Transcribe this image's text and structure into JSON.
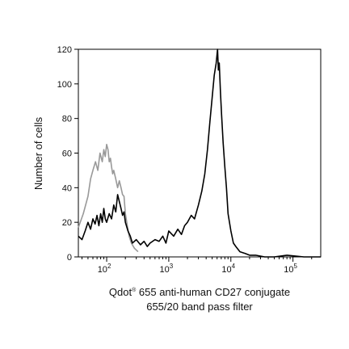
{
  "chart_data": {
    "type": "line",
    "title": "",
    "xlabel_line1_main": "Qdot",
    "xlabel_line1_sup": "®",
    "xlabel_line1_rest": " 655 anti-human CD27 conjugate",
    "xlabel_line2": "655/20 band pass filter",
    "ylabel": "Number of cells",
    "x_scale": "log",
    "xlim": [
      35,
      280000
    ],
    "ylim": [
      0,
      120
    ],
    "y_ticks": [
      0,
      20,
      40,
      60,
      80,
      100,
      120
    ],
    "x_ticks": [
      {
        "base": "10",
        "exp": "2",
        "value": 100
      },
      {
        "base": "10",
        "exp": "3",
        "value": 1000
      },
      {
        "base": "10",
        "exp": "4",
        "value": 10000
      },
      {
        "base": "10",
        "exp": "5",
        "value": 100000
      }
    ],
    "grid": false,
    "legend": "none",
    "series": [
      {
        "color": "#999999",
        "x": [
          35,
          42,
          50,
          55,
          60,
          66,
          72,
          78,
          85,
          90,
          95,
          100,
          105,
          110,
          115,
          120,
          125,
          130,
          140,
          150,
          160,
          170,
          180,
          190,
          200,
          215,
          230,
          250,
          280,
          320
        ],
        "y": [
          17,
          25,
          35,
          45,
          50,
          55,
          50,
          60,
          55,
          62,
          58,
          65,
          62,
          55,
          57,
          52,
          48,
          50,
          45,
          40,
          44,
          40,
          36,
          35,
          25,
          18,
          12,
          8,
          5,
          3
        ]
      },
      {
        "color": "#000000",
        "x": [
          35,
          40,
          45,
          50,
          55,
          60,
          65,
          70,
          75,
          80,
          85,
          90,
          95,
          100,
          110,
          120,
          130,
          140,
          150,
          160,
          170,
          180,
          190,
          200,
          220,
          240,
          260,
          300,
          350,
          400,
          450,
          500,
          600,
          700,
          800,
          900,
          1000,
          1200,
          1400,
          1600,
          1800,
          2000,
          2300,
          2600,
          3000,
          3400,
          3800,
          4200,
          4600,
          5000,
          5400,
          5800,
          6100,
          6300,
          6500,
          6800,
          7100,
          7500,
          8000,
          8500,
          9000,
          10000,
          11000,
          12000,
          14000,
          17000,
          20000,
          25000,
          35000,
          50000,
          80000,
          150000,
          280000
        ],
        "y": [
          12,
          10,
          15,
          20,
          16,
          22,
          19,
          24,
          18,
          25,
          20,
          28,
          22,
          20,
          25,
          22,
          30,
          26,
          36,
          32,
          28,
          24,
          26,
          20,
          15,
          12,
          8,
          10,
          7,
          9,
          6,
          8,
          10,
          9,
          12,
          8,
          15,
          12,
          16,
          13,
          18,
          20,
          24,
          22,
          30,
          38,
          48,
          62,
          78,
          92,
          105,
          112,
          120,
          108,
          112,
          95,
          82,
          66,
          52,
          40,
          25,
          15,
          8,
          6,
          3,
          2,
          1,
          1,
          0,
          0,
          1,
          0,
          0
        ]
      }
    ]
  }
}
